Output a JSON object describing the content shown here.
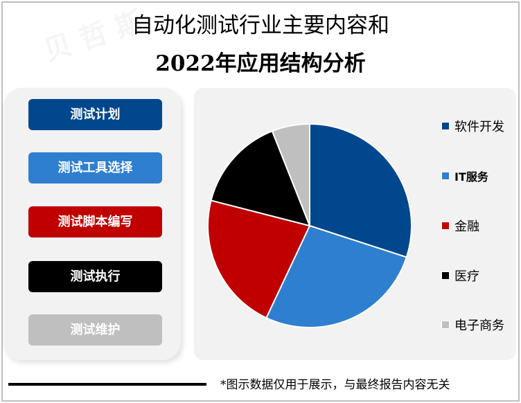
{
  "title": {
    "line1": "自动化测试行业主要内容和",
    "line2": "2022年应用结构分析"
  },
  "steps": [
    {
      "label": "测试计划",
      "color": "#00478D"
    },
    {
      "label": "测试工具选择",
      "color": "#2E7FCF"
    },
    {
      "label": "测试脚本编写",
      "color": "#C00000"
    },
    {
      "label": "测试执行",
      "color": "#000000"
    },
    {
      "label": "测试维护",
      "color": "#BFBFBF"
    }
  ],
  "chart_data": {
    "type": "pie",
    "title": "2022年应用结构分析",
    "categories": [
      "软件开发",
      "IT服务",
      "金融",
      "医疗",
      "电子商务"
    ],
    "values": [
      30,
      27,
      22,
      15,
      6
    ],
    "colors": [
      "#00478D",
      "#2E7FCF",
      "#C00000",
      "#000000",
      "#BFBFBF"
    ],
    "start_angle_deg": 0,
    "direction": "clockwise",
    "legend_position": "right",
    "data_labels": false
  },
  "legend": [
    {
      "label": "软件开发",
      "color": "#00478D"
    },
    {
      "label": "IT服务",
      "color": "#2E7FCF"
    },
    {
      "label": "金融",
      "color": "#C00000"
    },
    {
      "label": "医疗",
      "color": "#000000"
    },
    {
      "label": "电子商务",
      "color": "#BFBFBF"
    }
  ],
  "footer": {
    "note": "*图示数据仅用于展示，与最终报告内容无关"
  }
}
